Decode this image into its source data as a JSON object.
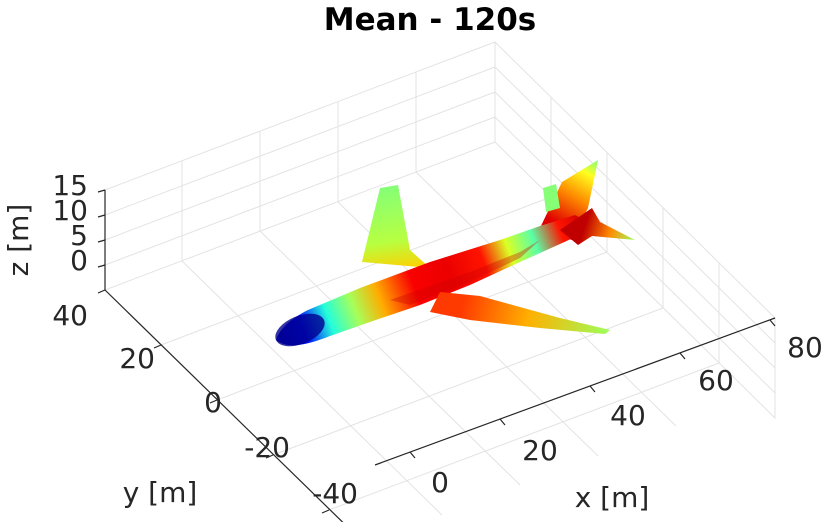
{
  "chart_data": {
    "type": "surface3d",
    "title": "Mean - 120s",
    "xlabel": "x [m]",
    "ylabel": "y [m]",
    "zlabel": "z [m]",
    "xticks": [
      "0",
      "20",
      "40",
      "60",
      "80"
    ],
    "yticks": [
      "-40",
      "-20",
      "0",
      "20",
      "40"
    ],
    "zticks": [
      "0",
      "5",
      "10",
      "15"
    ],
    "xlim": [
      -10,
      85
    ],
    "ylim": [
      -45,
      45
    ],
    "zlim": [
      -5,
      15
    ],
    "grid": true,
    "colormap": "jet",
    "colormap_stops": [
      "#00008f",
      "#0000ff",
      "#00ffff",
      "#80ff80",
      "#ffff00",
      "#ff0000",
      "#800000"
    ],
    "fuselage_color_profile": [
      {
        "x": 0,
        "value": 0.05
      },
      {
        "x": 6,
        "value": 0.18
      },
      {
        "x": 12,
        "value": 0.38
      },
      {
        "x": 18,
        "value": 0.55
      },
      {
        "x": 24,
        "value": 0.72
      },
      {
        "x": 32,
        "value": 0.84
      },
      {
        "x": 40,
        "value": 0.86
      },
      {
        "x": 48,
        "value": 0.82
      },
      {
        "x": 54,
        "value": 0.62
      },
      {
        "x": 60,
        "value": 0.45
      },
      {
        "x": 66,
        "value": 0.82
      },
      {
        "x": 72,
        "value": 0.9
      }
    ]
  }
}
